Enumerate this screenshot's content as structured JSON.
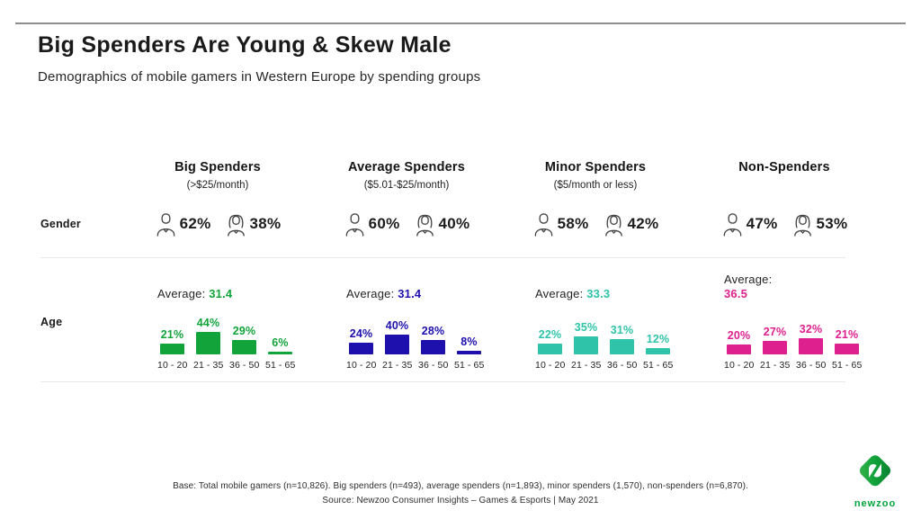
{
  "page": {
    "title": "Big Spenders Are Young & Skew Male",
    "subtitle": "Demographics of mobile gamers in Western Europe by spending groups"
  },
  "rows": {
    "gender_label": "Gender",
    "age_label": "Age",
    "average_label": "Average:"
  },
  "icons": {
    "male": "male-icon",
    "female": "female-icon",
    "logo": "newzoo-diamond-icon"
  },
  "columns": [
    {
      "name": "Big Spenders",
      "range": "(>$25/month)",
      "male_pct": "62%",
      "female_pct": "38%",
      "average": "31.4",
      "color": "#12A43B",
      "age_bars": [
        {
          "label": "10 - 20",
          "pct": "21%",
          "value": 21
        },
        {
          "label": "21 - 35",
          "pct": "44%",
          "value": 44
        },
        {
          "label": "36 - 50",
          "pct": "29%",
          "value": 29
        },
        {
          "label": "51 - 65",
          "pct": "6%",
          "value": 6
        }
      ]
    },
    {
      "name": "Average Spenders",
      "range": "($5.01-$25/month)",
      "male_pct": "60%",
      "female_pct": "40%",
      "average": "31.4",
      "color": "#1D10AC",
      "age_bars": [
        {
          "label": "10 - 20",
          "pct": "24%",
          "value": 24
        },
        {
          "label": "21 - 35",
          "pct": "40%",
          "value": 40
        },
        {
          "label": "36 - 50",
          "pct": "28%",
          "value": 28
        },
        {
          "label": "51 - 65",
          "pct": "8%",
          "value": 8
        }
      ]
    },
    {
      "name": "Minor Spenders",
      "range": "($5/month or less)",
      "male_pct": "58%",
      "female_pct": "42%",
      "average": "33.3",
      "color": "#2FC3A9",
      "age_bars": [
        {
          "label": "10 - 20",
          "pct": "22%",
          "value": 22
        },
        {
          "label": "21 - 35",
          "pct": "35%",
          "value": 35
        },
        {
          "label": "36 - 50",
          "pct": "31%",
          "value": 31
        },
        {
          "label": "51 - 65",
          "pct": "12%",
          "value": 12
        }
      ]
    },
    {
      "name": "Non-Spenders",
      "range": "",
      "male_pct": "47%",
      "female_pct": "53%",
      "average": "36.5",
      "color": "#DE1F8E",
      "age_bars": [
        {
          "label": "10 - 20",
          "pct": "20%",
          "value": 20
        },
        {
          "label": "21 - 35",
          "pct": "27%",
          "value": 27
        },
        {
          "label": "36 - 50",
          "pct": "32%",
          "value": 32
        },
        {
          "label": "51 - 65",
          "pct": "21%",
          "value": 21
        }
      ]
    }
  ],
  "footer": {
    "base": "Base: Total mobile gamers (n=10,826). Big spenders (n=493), average spenders (n=1,893), minor spenders (1,570), non-spenders (n=6,870).",
    "source": "Source: Newzoo Consumer Insights – Games & Esports | May 2021"
  },
  "logo": {
    "text": "newzoo",
    "color": "#00A33C"
  },
  "chart_data": {
    "type": "bar",
    "title": "Big Spenders Are Young & Skew Male",
    "subtitle": "Demographics of mobile gamers in Western Europe by spending groups",
    "categories": [
      "10 - 20",
      "21 - 35",
      "36 - 50",
      "51 - 65"
    ],
    "unit": "%",
    "ylim": [
      0,
      50
    ],
    "grid": false,
    "legend_position": "none",
    "series": [
      {
        "name": "Big Spenders (>$25/month)",
        "values": [
          21,
          44,
          29,
          6
        ],
        "color": "#12A43B",
        "average_age": 31.4,
        "gender": {
          "male": 62,
          "female": 38
        }
      },
      {
        "name": "Average Spenders ($5.01-$25/month)",
        "values": [
          24,
          40,
          28,
          8
        ],
        "color": "#1D10AC",
        "average_age": 31.4,
        "gender": {
          "male": 60,
          "female": 40
        }
      },
      {
        "name": "Minor Spenders ($5/month or less)",
        "values": [
          22,
          35,
          31,
          12
        ],
        "color": "#2FC3A9",
        "average_age": 33.3,
        "gender": {
          "male": 58,
          "female": 42
        }
      },
      {
        "name": "Non-Spenders",
        "values": [
          20,
          27,
          32,
          21
        ],
        "color": "#DE1F8E",
        "average_age": 36.5,
        "gender": {
          "male": 47,
          "female": 53
        }
      }
    ]
  }
}
